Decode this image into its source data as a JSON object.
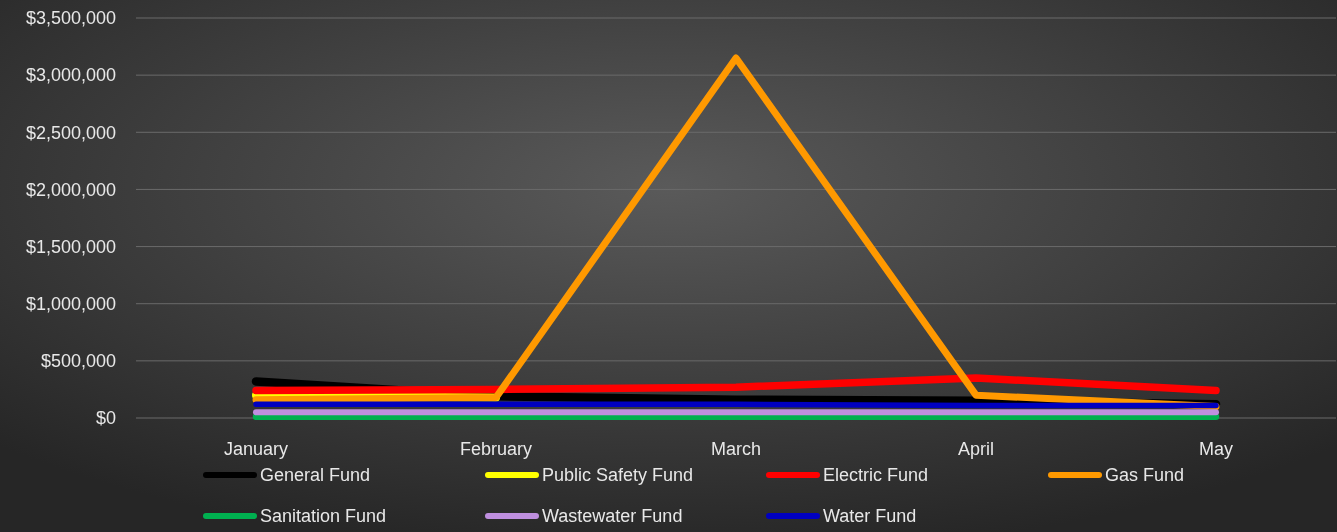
{
  "chart_data": {
    "type": "line",
    "categories": [
      "January",
      "February",
      "March",
      "April",
      "May"
    ],
    "series": [
      {
        "name": "General Fund",
        "color": "#000000",
        "values": [
          320000,
          190000,
          160000,
          150000,
          120000
        ]
      },
      {
        "name": "Public Safety Fund",
        "color": "#ffff00",
        "values": [
          200000,
          180000,
          null,
          null,
          null
        ]
      },
      {
        "name": "Electric Fund",
        "color": "#ff0000",
        "values": [
          240000,
          250000,
          270000,
          350000,
          240000
        ]
      },
      {
        "name": "Gas Fund",
        "color": "#ff9900",
        "values": [
          160000,
          180000,
          3150000,
          200000,
          100000
        ]
      },
      {
        "name": "Sanitation Fund",
        "color": "#00b050",
        "values": [
          10000,
          10000,
          10000,
          10000,
          10000
        ]
      },
      {
        "name": "Wastewater Fund",
        "color": "#bf8fdf",
        "values": [
          50000,
          50000,
          50000,
          50000,
          50000
        ]
      },
      {
        "name": "Water Fund",
        "color": "#0000c0",
        "values": [
          120000,
          120000,
          120000,
          110000,
          110000
        ]
      }
    ],
    "ylim": [
      0,
      3500000
    ],
    "yticks": [
      {
        "value": 0,
        "label": "$0"
      },
      {
        "value": 500000,
        "label": "$500,000"
      },
      {
        "value": 1000000,
        "label": "$1,000,000"
      },
      {
        "value": 1500000,
        "label": "$1,500,000"
      },
      {
        "value": 2000000,
        "label": "$2,000,000"
      },
      {
        "value": 2500000,
        "label": "$2,500,000"
      },
      {
        "value": 3000000,
        "label": "$3,000,000"
      },
      {
        "value": 3500000,
        "label": "$3,500,000"
      }
    ],
    "grid": "y",
    "legend": "bottom",
    "line_style": "solid"
  }
}
